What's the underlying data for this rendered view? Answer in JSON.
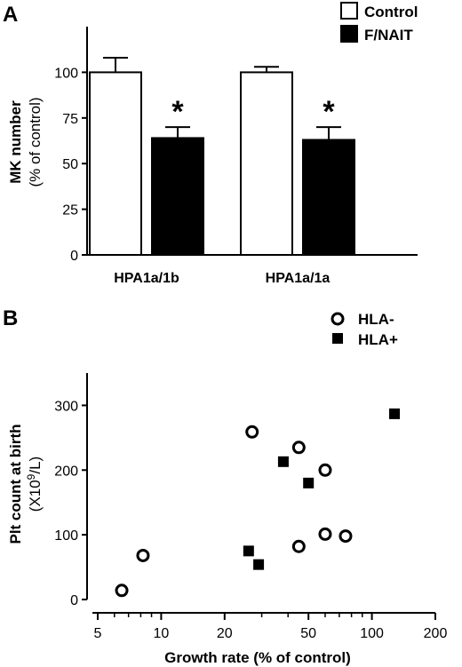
{
  "chart_data": [
    {
      "panel": "A",
      "type": "bar",
      "categories": [
        "HPA1a/1b",
        "HPA1a/1a"
      ],
      "series": [
        {
          "name": "Control",
          "values": [
            100,
            100
          ],
          "error": [
            8,
            3
          ],
          "color": "#ffffff"
        },
        {
          "name": "F/NAIT",
          "values": [
            64,
            63
          ],
          "error": [
            6,
            7
          ],
          "color": "#000000"
        }
      ],
      "significance_marker": "*",
      "ylabel_line1": "MK number",
      "ylabel_line2": "(% of control)",
      "ylim": [
        0,
        125
      ],
      "yticks": [
        0,
        25,
        50,
        75,
        100
      ],
      "legend_position": "top-right",
      "grid": false
    },
    {
      "panel": "B",
      "type": "scatter",
      "xscale": "log",
      "xlim": [
        5,
        200
      ],
      "xticks": [
        5,
        10,
        20,
        50,
        100,
        200
      ],
      "ylim": [
        0,
        350
      ],
      "yticks": [
        0,
        100,
        200,
        300
      ],
      "xlabel": "Growth rate (% of control)",
      "ylabel_line1": "Plt count at birth",
      "ylabel_line2": "(X10",
      "ylabel_sup": "9",
      "ylabel_line2_end": "/L)",
      "legend_position": "top-right",
      "grid": false,
      "series": [
        {
          "name": "HLA-",
          "marker": "open-circle",
          "x": [
            6.5,
            8.2,
            27,
            45,
            60,
            45,
            60,
            75
          ],
          "y": [
            14,
            68,
            259,
            235,
            200,
            82,
            101,
            98
          ]
        },
        {
          "name": "HLA+",
          "marker": "filled-square",
          "x": [
            26,
            29,
            38,
            50,
            128
          ],
          "y": [
            75,
            54,
            213,
            180,
            287
          ]
        }
      ]
    }
  ]
}
